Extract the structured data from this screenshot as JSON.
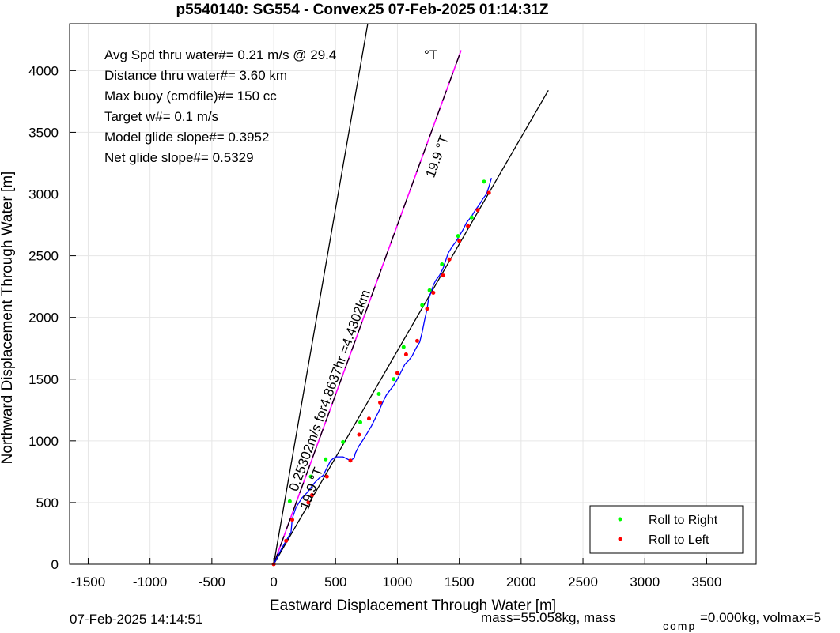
{
  "chart_data": {
    "type": "line",
    "title": "p5540140: SG554 - Convex25 07-Feb-2025 01:14:31Z",
    "xlabel": "Eastward Displacement Through Water [m]",
    "ylabel": "Northward Displacement Through Water [m]",
    "xlim": [
      -1650,
      3900
    ],
    "ylim": [
      0,
      4380
    ],
    "xticks": [
      -1500,
      -1000,
      -500,
      0,
      500,
      1000,
      1500,
      2000,
      2500,
      3000,
      3500
    ],
    "yticks": [
      0,
      500,
      1000,
      1500,
      2000,
      2500,
      3000,
      3500,
      4000
    ],
    "grid": true,
    "stats_lines": [
      "Avg Spd thru water#=  0.21 m/s @  29.4",
      "Distance thru water#=  3.60 km",
      "Max buoy (cmdfile)#= 150 cc",
      "Target w#= 0.1 m/s",
      "Model glide slope#= 0.3952",
      "Net glide slope#= 0.5329"
    ],
    "stats_unit": "°T",
    "annotations": {
      "heading_top": "19.9 °T",
      "heading_bottom": "19.9 °T",
      "speed_label": "0.25302m/s for4.8637hr =4.4302km"
    },
    "lines": {
      "black_steep": [
        [
          0,
          0
        ],
        [
          760,
          4380
        ]
      ],
      "magenta": [
        [
          0,
          0
        ],
        [
          1515,
          4165
        ]
      ],
      "black_mid": [
        [
          0,
          0
        ],
        [
          2220,
          3840
        ]
      ]
    },
    "track": [
      [
        0,
        0
      ],
      [
        60,
        120
      ],
      [
        100,
        190
      ],
      [
        140,
        260
      ],
      [
        150,
        370
      ],
      [
        180,
        460
      ],
      [
        230,
        540
      ],
      [
        270,
        580
      ],
      [
        300,
        620
      ],
      [
        330,
        660
      ],
      [
        370,
        700
      ],
      [
        400,
        720
      ],
      [
        430,
        780
      ],
      [
        460,
        840
      ],
      [
        500,
        870
      ],
      [
        560,
        870
      ],
      [
        620,
        840
      ],
      [
        650,
        860
      ],
      [
        660,
        900
      ],
      [
        690,
        960
      ],
      [
        730,
        1020
      ],
      [
        760,
        1070
      ],
      [
        790,
        1120
      ],
      [
        820,
        1180
      ],
      [
        850,
        1240
      ],
      [
        880,
        1310
      ],
      [
        910,
        1370
      ],
      [
        940,
        1410
      ],
      [
        970,
        1450
      ],
      [
        1000,
        1500
      ],
      [
        1030,
        1560
      ],
      [
        1060,
        1620
      ],
      [
        1090,
        1650
      ],
      [
        1120,
        1690
      ],
      [
        1150,
        1750
      ],
      [
        1180,
        1800
      ],
      [
        1200,
        1880
      ],
      [
        1220,
        1980
      ],
      [
        1240,
        2070
      ],
      [
        1250,
        2140
      ],
      [
        1270,
        2200
      ],
      [
        1290,
        2260
      ],
      [
        1310,
        2300
      ],
      [
        1340,
        2340
      ],
      [
        1370,
        2400
      ],
      [
        1390,
        2460
      ],
      [
        1410,
        2520
      ],
      [
        1440,
        2570
      ],
      [
        1470,
        2610
      ],
      [
        1500,
        2660
      ],
      [
        1530,
        2710
      ],
      [
        1560,
        2770
      ],
      [
        1600,
        2820
      ],
      [
        1630,
        2870
      ],
      [
        1660,
        2910
      ],
      [
        1690,
        2960
      ],
      [
        1720,
        3000
      ],
      [
        1740,
        3060
      ],
      [
        1760,
        3130
      ]
    ],
    "roll_right_points": [
      [
        130,
        510
      ],
      [
        300,
        710
      ],
      [
        420,
        850
      ],
      [
        560,
        990
      ],
      [
        700,
        1150
      ],
      [
        850,
        1380
      ],
      [
        970,
        1500
      ],
      [
        1050,
        1760
      ],
      [
        1200,
        2100
      ],
      [
        1260,
        2220
      ],
      [
        1360,
        2430
      ],
      [
        1490,
        2660
      ],
      [
        1600,
        2810
      ],
      [
        1700,
        3100
      ]
    ],
    "roll_left_points": [
      [
        0,
        0
      ],
      [
        100,
        190
      ],
      [
        150,
        360
      ],
      [
        280,
        500
      ],
      [
        310,
        560
      ],
      [
        430,
        710
      ],
      [
        620,
        840
      ],
      [
        690,
        1050
      ],
      [
        770,
        1180
      ],
      [
        860,
        1310
      ],
      [
        1000,
        1550
      ],
      [
        1070,
        1700
      ],
      [
        1160,
        1810
      ],
      [
        1240,
        2070
      ],
      [
        1290,
        2200
      ],
      [
        1370,
        2340
      ],
      [
        1420,
        2470
      ],
      [
        1500,
        2620
      ],
      [
        1570,
        2740
      ],
      [
        1650,
        2870
      ],
      [
        1740,
        3010
      ]
    ],
    "legend": {
      "position": "bottom-right",
      "entries": [
        {
          "label": "Roll to Right",
          "color": "#00ff00"
        },
        {
          "label": "Roll to Left",
          "color": "#ff0000"
        }
      ]
    },
    "colors": {
      "track": "#0000ff",
      "magenta": "#ff00ff",
      "grid": "#e6e6e6",
      "axes": "#000000"
    }
  },
  "footer": {
    "timestamp": "07-Feb-2025 14:14:51",
    "mass_text": "mass=55.058kg, mass",
    "comp_sub": "comp",
    "comp_text": "=0.000kg, volmax=5"
  }
}
